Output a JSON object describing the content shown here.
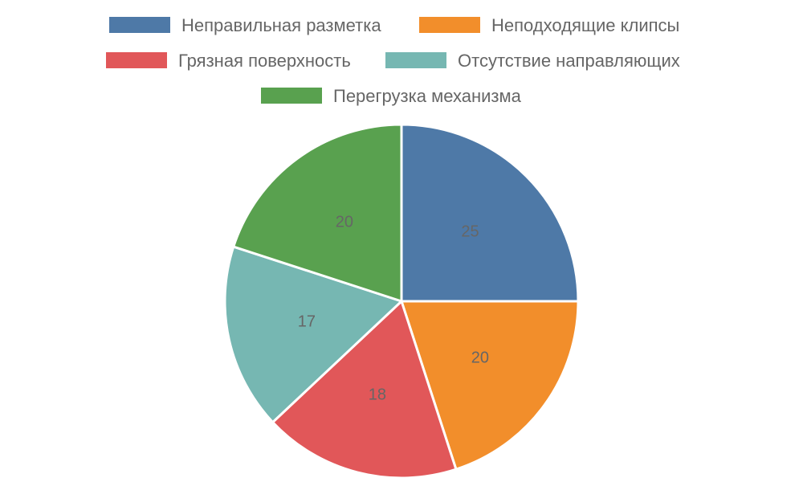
{
  "chart_data": {
    "type": "pie",
    "categories": [
      "Неправильная разметка",
      "Неподходящие клипсы",
      "Грязная поверхность",
      "Отсутствие направляющих",
      "Перегрузка механизма"
    ],
    "values": [
      25,
      20,
      18,
      17,
      20
    ],
    "labels": [
      "25",
      "20",
      "18",
      "17",
      "20"
    ],
    "colors": [
      "#4e79a7",
      "#f28e2b",
      "#e15759",
      "#76b7b2",
      "#59a14f"
    ],
    "legend_position": "top",
    "start_angle": "12 o'clock",
    "direction": "clockwise"
  }
}
